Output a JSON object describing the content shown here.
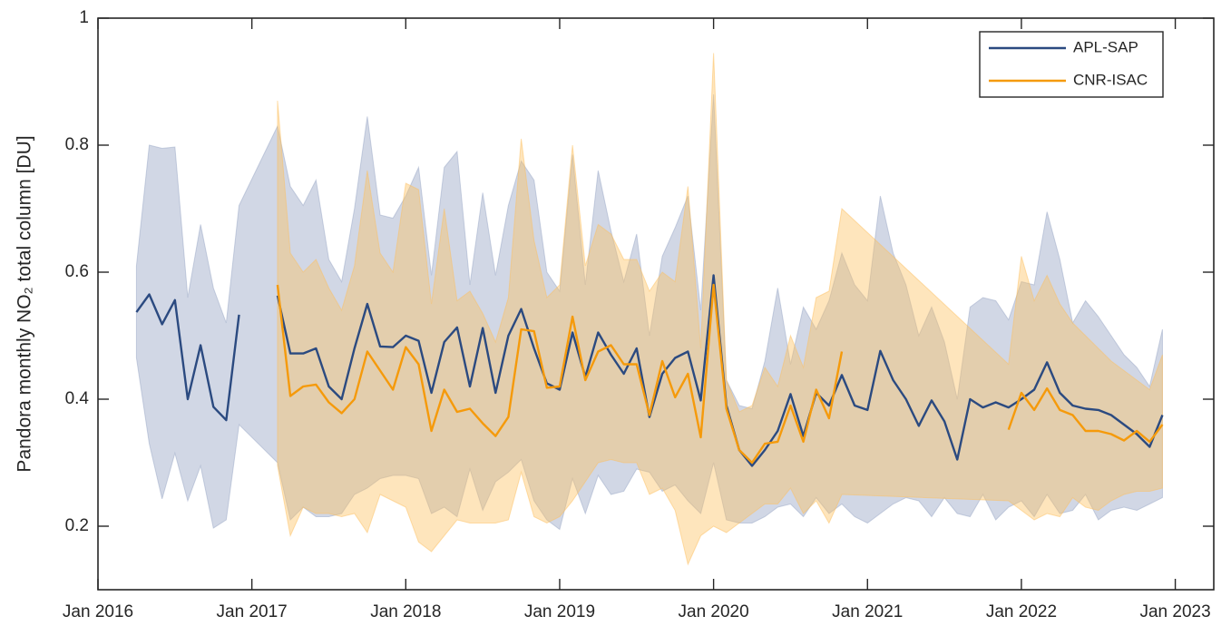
{
  "chart_data": {
    "type": "line",
    "ylabel": "Pandora monthly NO₂ total column [DU]",
    "xlim": [
      "2016-01",
      "2023-04"
    ],
    "xticks": [
      {
        "value": "2016-01",
        "label": "Jan 2016"
      },
      {
        "value": "2017-01",
        "label": "Jan 2017"
      },
      {
        "value": "2018-01",
        "label": "Jan 2018"
      },
      {
        "value": "2019-01",
        "label": "Jan 2019"
      },
      {
        "value": "2020-01",
        "label": "Jan 2020"
      },
      {
        "value": "2021-01",
        "label": "Jan 2021"
      },
      {
        "value": "2022-01",
        "label": "Jan 2022"
      },
      {
        "value": "2023-01",
        "label": "Jan 2023"
      }
    ],
    "ylim": [
      0.1,
      1
    ],
    "yticks": [
      0.2,
      0.4,
      0.6,
      0.8,
      1
    ],
    "legend": "northeast",
    "x": [
      "2016-04",
      "2016-05",
      "2016-06",
      "2016-07",
      "2016-08",
      "2016-09",
      "2016-10",
      "2016-11",
      "2016-12",
      "2017-01",
      "2017-02",
      "2017-03",
      "2017-04",
      "2017-05",
      "2017-06",
      "2017-07",
      "2017-08",
      "2017-09",
      "2017-10",
      "2017-11",
      "2017-12",
      "2018-01",
      "2018-02",
      "2018-03",
      "2018-04",
      "2018-05",
      "2018-06",
      "2018-07",
      "2018-08",
      "2018-09",
      "2018-10",
      "2018-11",
      "2018-12",
      "2019-01",
      "2019-02",
      "2019-03",
      "2019-04",
      "2019-05",
      "2019-06",
      "2019-07",
      "2019-08",
      "2019-09",
      "2019-10",
      "2019-11",
      "2019-12",
      "2020-01",
      "2020-02",
      "2020-03",
      "2020-04",
      "2020-05",
      "2020-06",
      "2020-07",
      "2020-08",
      "2020-09",
      "2020-10",
      "2020-11",
      "2020-12",
      "2021-01",
      "2021-02",
      "2021-03",
      "2021-04",
      "2021-05",
      "2021-06",
      "2021-07",
      "2021-08",
      "2021-09",
      "2021-10",
      "2021-11",
      "2021-12",
      "2022-01",
      "2022-02",
      "2022-03",
      "2022-04",
      "2022-05",
      "2022-06",
      "2022-07",
      "2022-08",
      "2022-09",
      "2022-10",
      "2022-11",
      "2022-12"
    ],
    "series": [
      {
        "name": "APL-SAP",
        "color": "#2b4a80",
        "band_color": "#9aa7c6",
        "values": [
          0.537,
          0.565,
          0.518,
          0.556,
          0.4,
          0.485,
          0.388,
          0.367,
          0.533,
          null,
          null,
          0.563,
          0.472,
          0.472,
          0.48,
          0.42,
          0.4,
          0.48,
          0.55,
          0.483,
          0.482,
          0.5,
          0.492,
          0.41,
          0.49,
          0.513,
          0.42,
          0.512,
          0.41,
          0.5,
          0.542,
          0.48,
          0.425,
          0.415,
          0.505,
          0.435,
          0.505,
          0.47,
          0.44,
          0.48,
          0.372,
          0.44,
          0.465,
          0.475,
          0.398,
          0.595,
          0.39,
          0.32,
          0.295,
          0.32,
          0.35,
          0.408,
          0.342,
          0.41,
          0.39,
          0.438,
          0.39,
          0.383,
          0.476,
          0.43,
          0.4,
          0.358,
          0.398,
          0.365,
          0.305,
          0.4,
          0.387,
          0.395,
          0.387,
          0.4,
          0.415,
          0.458,
          0.41,
          0.39,
          0.385,
          0.383,
          0.375,
          0.36,
          0.345,
          0.325,
          0.375
        ],
        "upper": [
          0.61,
          0.8,
          0.795,
          0.797,
          0.56,
          0.675,
          0.575,
          0.52,
          0.705,
          null,
          null,
          0.83,
          0.735,
          0.705,
          0.745,
          0.62,
          0.585,
          0.7,
          0.845,
          0.69,
          0.685,
          0.72,
          0.765,
          0.595,
          0.765,
          0.79,
          0.58,
          0.725,
          0.595,
          0.705,
          0.775,
          0.745,
          0.6,
          0.57,
          0.785,
          0.58,
          0.76,
          0.665,
          0.585,
          0.66,
          0.5,
          0.625,
          0.67,
          0.72,
          0.54,
          0.88,
          0.43,
          0.39,
          0.385,
          0.46,
          0.575,
          0.455,
          0.545,
          0.51,
          0.555,
          0.63,
          0.58,
          0.555,
          0.72,
          0.63,
          0.58,
          0.5,
          0.545,
          0.49,
          0.4,
          0.545,
          0.56,
          0.555,
          0.525,
          0.585,
          0.58,
          0.695,
          0.62,
          0.52,
          0.555,
          0.53,
          0.5,
          0.47,
          0.45,
          0.42,
          0.51
        ],
        "lower": [
          0.465,
          0.33,
          0.243,
          0.315,
          0.24,
          0.295,
          0.197,
          0.21,
          0.36,
          null,
          null,
          0.3,
          0.21,
          0.23,
          0.215,
          0.215,
          0.22,
          0.25,
          0.26,
          0.275,
          0.28,
          0.28,
          0.275,
          0.22,
          0.23,
          0.215,
          0.29,
          0.225,
          0.27,
          0.285,
          0.305,
          0.24,
          0.21,
          0.195,
          0.275,
          0.22,
          0.28,
          0.25,
          0.255,
          0.29,
          0.285,
          0.255,
          0.265,
          0.24,
          0.22,
          0.3,
          0.21,
          0.205,
          0.205,
          0.215,
          0.23,
          0.235,
          0.215,
          0.245,
          0.22,
          0.235,
          0.215,
          0.205,
          0.22,
          0.235,
          0.245,
          0.24,
          0.215,
          0.245,
          0.22,
          0.215,
          0.25,
          0.21,
          0.23,
          0.24,
          0.215,
          0.25,
          0.22,
          0.225,
          0.25,
          0.21,
          0.225,
          0.23,
          0.225,
          0.235,
          0.245
        ]
      },
      {
        "name": "CNR-ISAC",
        "color": "#f59a0b",
        "band_color": "#fdc060",
        "values": [
          null,
          null,
          null,
          null,
          null,
          null,
          null,
          null,
          null,
          null,
          null,
          0.58,
          0.405,
          0.42,
          0.423,
          0.395,
          0.378,
          0.4,
          0.475,
          0.445,
          0.415,
          0.482,
          0.455,
          0.35,
          0.415,
          0.38,
          0.385,
          0.362,
          0.342,
          0.372,
          0.51,
          0.507,
          0.418,
          0.42,
          0.53,
          0.43,
          0.475,
          0.485,
          0.455,
          0.455,
          0.375,
          0.46,
          0.403,
          0.44,
          0.34,
          0.58,
          0.385,
          0.32,
          0.3,
          0.33,
          0.333,
          0.39,
          0.333,
          0.415,
          0.37,
          0.475,
          null,
          null,
          null,
          null,
          null,
          null,
          null,
          null,
          null,
          null,
          null,
          null,
          0.352,
          0.41,
          0.383,
          0.417,
          0.383,
          0.375,
          0.35,
          0.35,
          0.345,
          0.335,
          0.35,
          0.333,
          0.36
        ],
        "upper": [
          null,
          null,
          null,
          null,
          null,
          null,
          null,
          null,
          null,
          null,
          null,
          0.87,
          0.63,
          0.6,
          0.62,
          0.575,
          0.54,
          0.61,
          0.76,
          0.63,
          0.6,
          0.74,
          0.73,
          0.55,
          0.7,
          0.555,
          0.57,
          0.535,
          0.49,
          0.56,
          0.81,
          0.65,
          0.56,
          0.58,
          0.8,
          0.61,
          0.675,
          0.66,
          0.62,
          0.62,
          0.57,
          0.6,
          0.585,
          0.735,
          0.48,
          0.945,
          0.43,
          0.38,
          0.39,
          0.45,
          0.42,
          0.5,
          0.45,
          0.56,
          0.57,
          0.7,
          null,
          null,
          null,
          null,
          null,
          null,
          null,
          null,
          null,
          null,
          null,
          null,
          0.455,
          0.625,
          0.555,
          0.595,
          0.55,
          0.52,
          0.5,
          0.48,
          0.46,
          0.445,
          0.43,
          0.415,
          0.47
        ],
        "lower": [
          null,
          null,
          null,
          null,
          null,
          null,
          null,
          null,
          null,
          null,
          null,
          0.295,
          0.185,
          0.23,
          0.22,
          0.22,
          0.215,
          0.22,
          0.19,
          0.25,
          0.24,
          0.23,
          0.175,
          0.16,
          0.185,
          0.21,
          0.205,
          0.205,
          0.205,
          0.21,
          0.285,
          0.215,
          0.205,
          0.215,
          0.24,
          0.27,
          0.3,
          0.305,
          0.3,
          0.3,
          0.25,
          0.26,
          0.225,
          0.14,
          0.185,
          0.2,
          0.19,
          0.205,
          0.22,
          0.235,
          0.235,
          0.26,
          0.22,
          0.24,
          0.205,
          0.25,
          null,
          null,
          null,
          null,
          null,
          null,
          null,
          null,
          null,
          null,
          null,
          null,
          0.24,
          0.225,
          0.21,
          0.22,
          0.215,
          0.245,
          0.23,
          0.225,
          0.24,
          0.25,
          0.255,
          0.255,
          0.26
        ]
      }
    ]
  }
}
